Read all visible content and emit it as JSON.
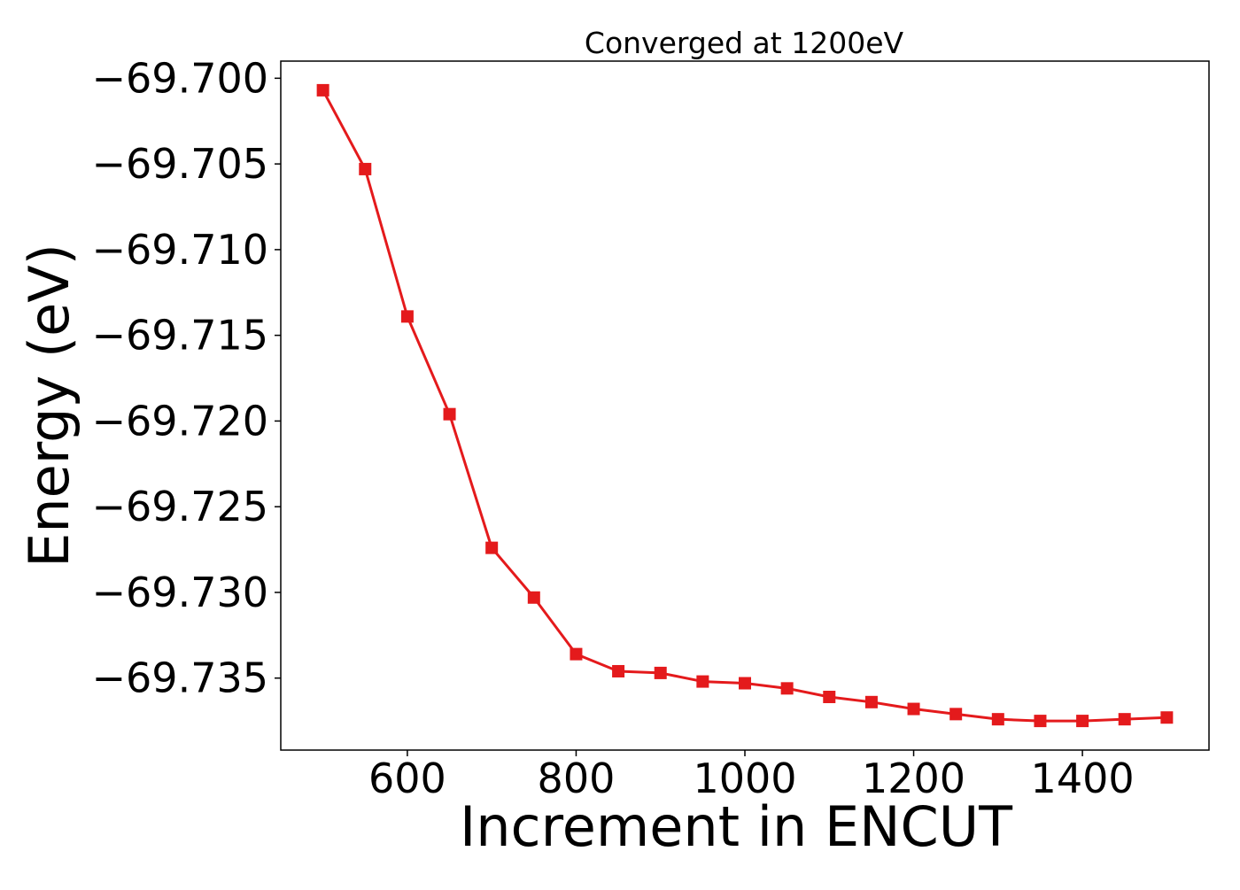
{
  "chart_data": {
    "type": "line",
    "title": "Converged at 1200eV",
    "xlabel": "Increment in ENCUT",
    "ylabel": "Energy (eV)",
    "xlim": [
      450,
      1550
    ],
    "ylim": [
      -69.7392,
      -69.699
    ],
    "x_ticks": [
      600,
      800,
      1000,
      1200,
      1400
    ],
    "x_tick_labels": [
      "600",
      "800",
      "1000",
      "1200",
      "1400"
    ],
    "y_ticks": [
      -69.7,
      -69.705,
      -69.71,
      -69.715,
      -69.72,
      -69.725,
      -69.73,
      -69.735
    ],
    "y_tick_labels": [
      "−69.700",
      "−69.705",
      "−69.710",
      "−69.715",
      "−69.720",
      "−69.725",
      "−69.730",
      "−69.735"
    ],
    "grid": false,
    "series": [
      {
        "color": "#e41a1c",
        "marker": "square",
        "x": [
          500,
          550,
          600,
          650,
          700,
          750,
          800,
          850,
          900,
          950,
          1000,
          1050,
          1100,
          1150,
          1200,
          1250,
          1300,
          1350,
          1400,
          1450,
          1500
        ],
        "y": [
          -69.7007,
          -69.7053,
          -69.7139,
          -69.7196,
          -69.7274,
          -69.7303,
          -69.7336,
          -69.7346,
          -69.7347,
          -69.7352,
          -69.7353,
          -69.7356,
          -69.7361,
          -69.7364,
          -69.7368,
          -69.7371,
          -69.7374,
          -69.7375,
          -69.7375,
          -69.7374,
          -69.7373
        ]
      }
    ]
  }
}
